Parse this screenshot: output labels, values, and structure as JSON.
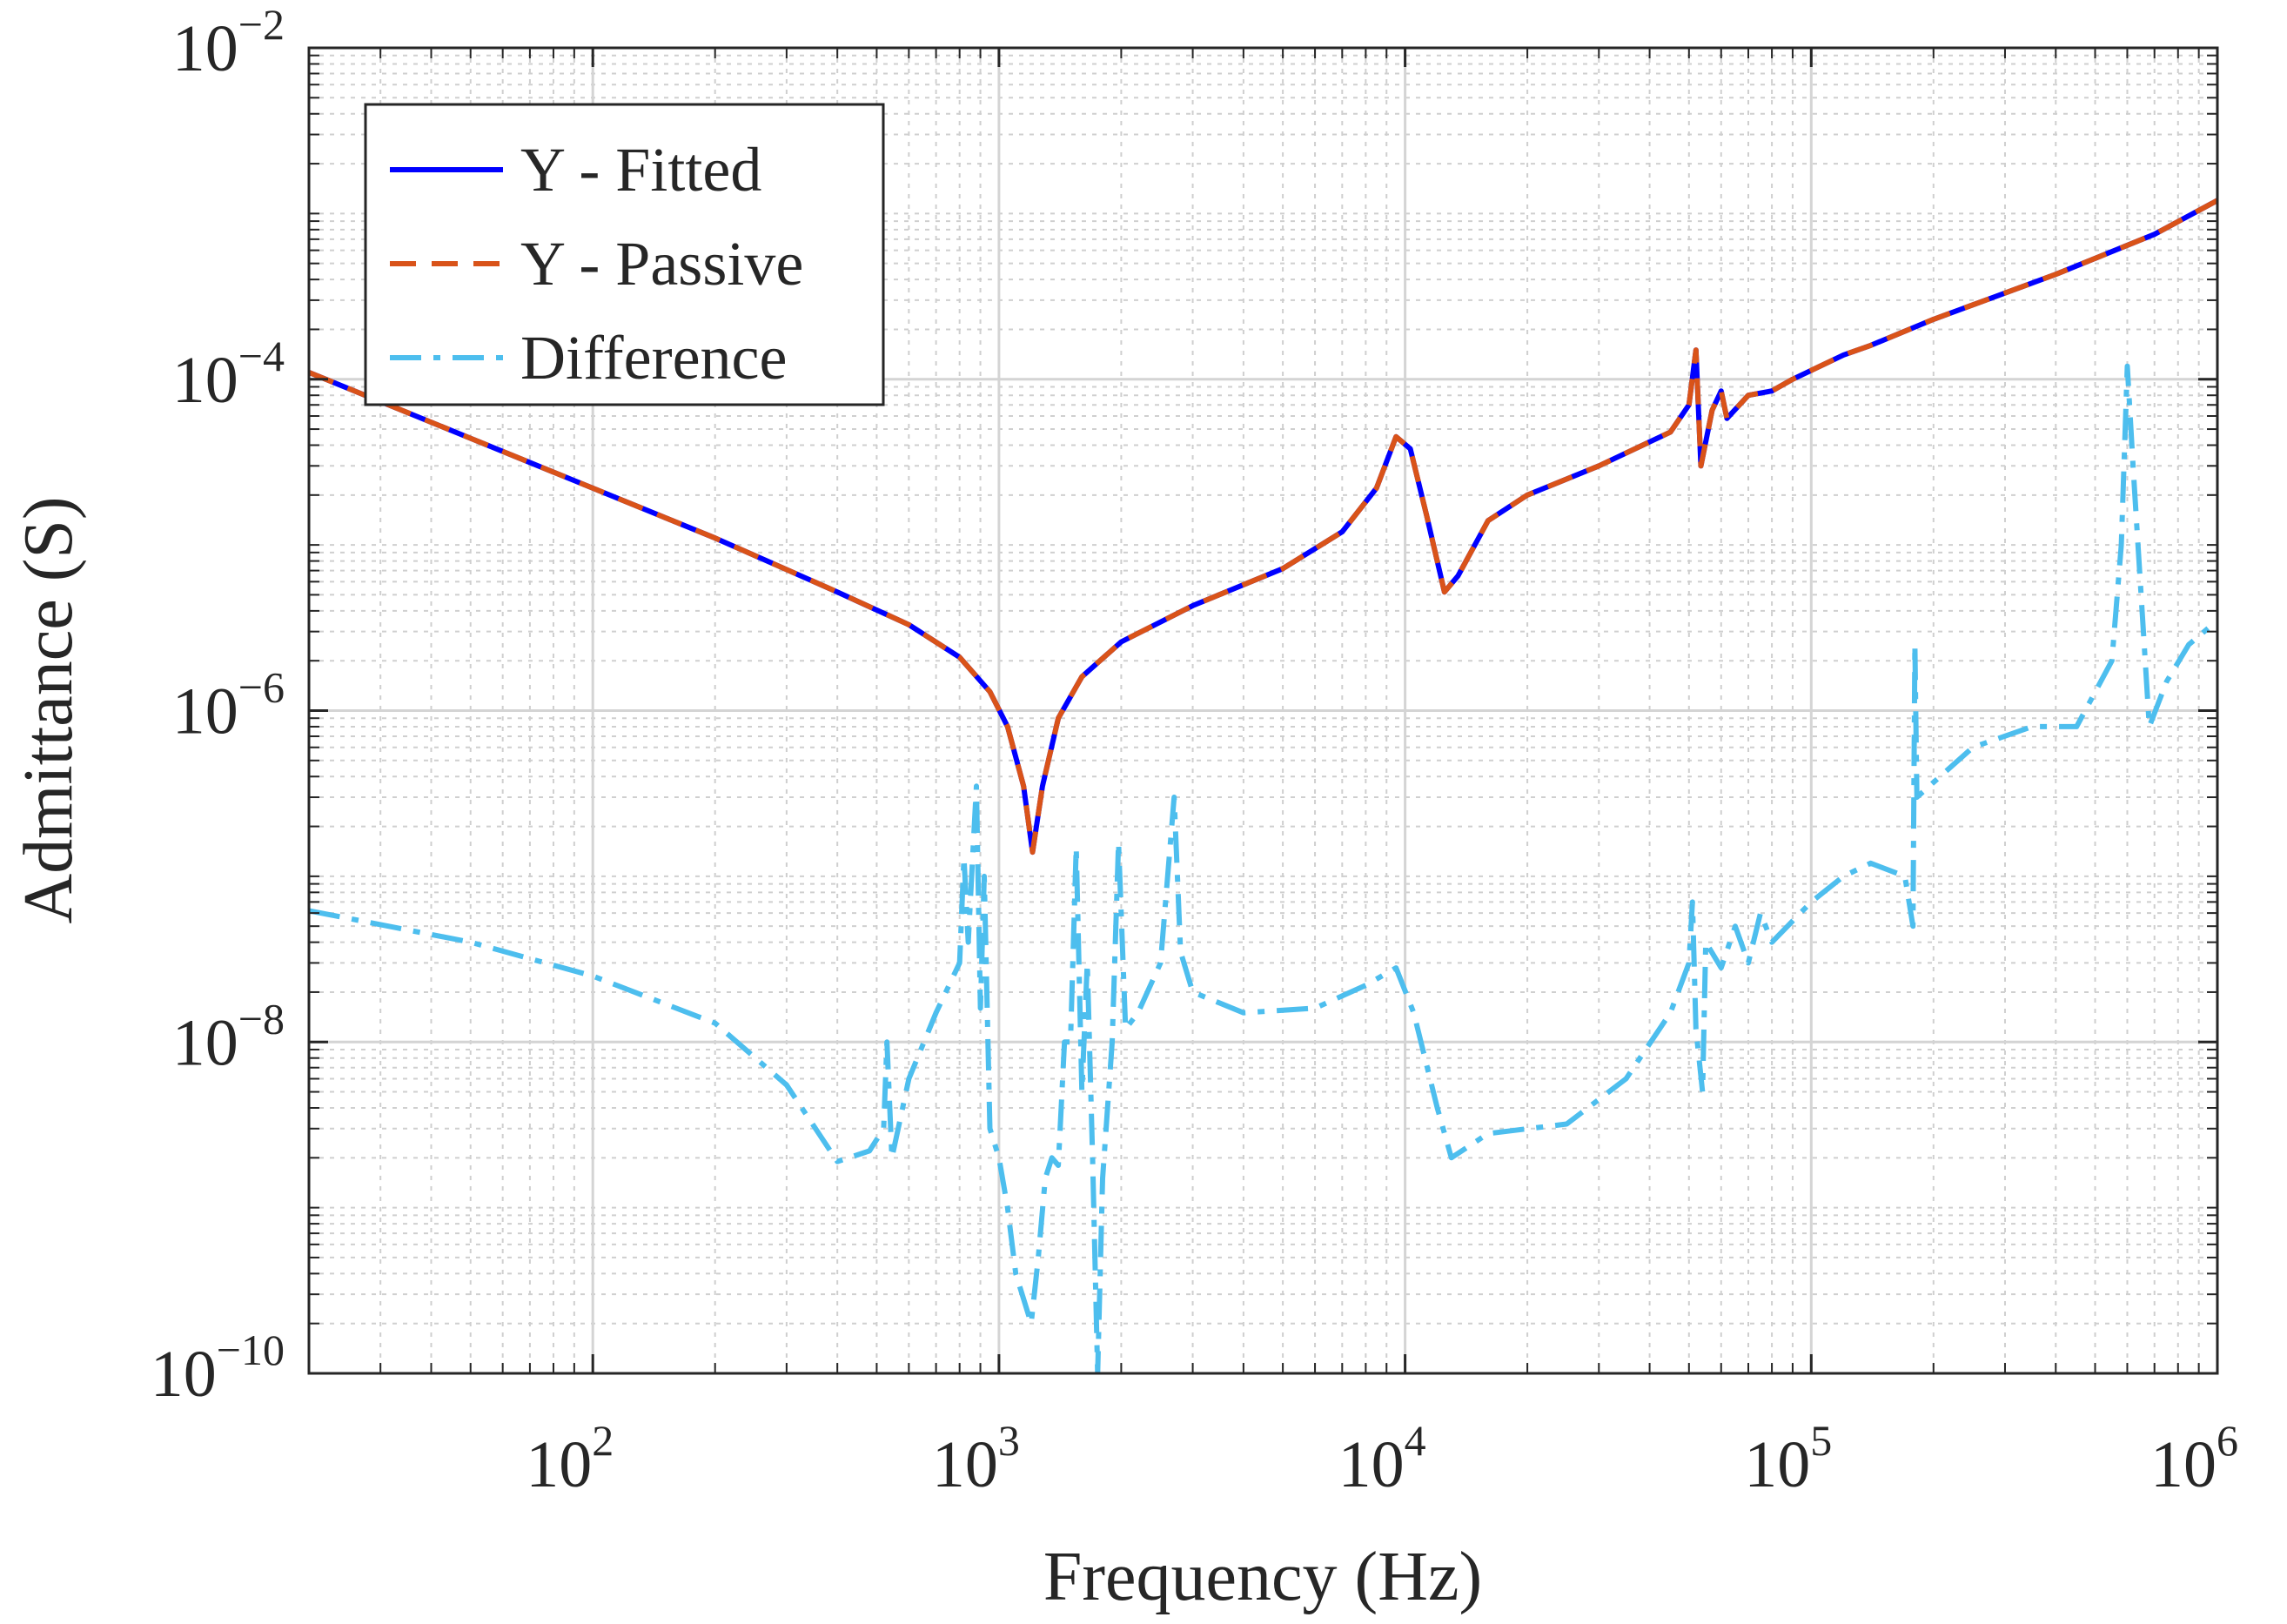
{
  "chart_data": {
    "type": "line",
    "title": "",
    "xlabel": "Frequency (Hz)",
    "ylabel": "Admittance (S)",
    "xscale": "log",
    "yscale": "log",
    "xlim": [
      20,
      1000000
    ],
    "ylim": [
      1e-10,
      0.01
    ],
    "grid": true,
    "minor_grid": true,
    "legend_position": "top-left",
    "x_ticks": [
      {
        "base": "10",
        "exp": "2",
        "value": 100
      },
      {
        "base": "10",
        "exp": "3",
        "value": 1000
      },
      {
        "base": "10",
        "exp": "4",
        "value": 10000
      },
      {
        "base": "10",
        "exp": "5",
        "value": 100000
      },
      {
        "base": "10",
        "exp": "6",
        "value": 1000000
      }
    ],
    "y_ticks": [
      {
        "base": "10",
        "exp": "−10",
        "value": 1e-10
      },
      {
        "base": "10",
        "exp": "−8",
        "value": 1e-08
      },
      {
        "base": "10",
        "exp": "−6",
        "value": 1e-06
      },
      {
        "base": "10",
        "exp": "−4",
        "value": 0.0001
      },
      {
        "base": "10",
        "exp": "−2",
        "value": 0.01
      }
    ],
    "series": [
      {
        "name": "Y - Fitted",
        "color": "#0000ff",
        "style": "solid",
        "points": [
          [
            20,
            0.00011
          ],
          [
            50,
            4.4e-05
          ],
          [
            100,
            2.2e-05
          ],
          [
            200,
            1.1e-05
          ],
          [
            400,
            5.2e-06
          ],
          [
            600,
            3.3e-06
          ],
          [
            800,
            2.1e-06
          ],
          [
            950,
            1.3e-06
          ],
          [
            1050,
            8e-07
          ],
          [
            1150,
            3.5e-07
          ],
          [
            1210,
            1.4e-07
          ],
          [
            1280,
            3.5e-07
          ],
          [
            1400,
            9e-07
          ],
          [
            1600,
            1.6e-06
          ],
          [
            2000,
            2.6e-06
          ],
          [
            3000,
            4.3e-06
          ],
          [
            5000,
            7.2e-06
          ],
          [
            7000,
            1.2e-05
          ],
          [
            8500,
            2.2e-05
          ],
          [
            9500,
            4.5e-05
          ],
          [
            10300,
            3.8e-05
          ],
          [
            11300,
            1.5e-05
          ],
          [
            12500,
            5.2e-06
          ],
          [
            13500,
            6.5e-06
          ],
          [
            16000,
            1.4e-05
          ],
          [
            20000,
            2e-05
          ],
          [
            30000,
            3e-05
          ],
          [
            45000,
            4.8e-05
          ],
          [
            50000,
            7e-05
          ],
          [
            52000,
            0.00015
          ],
          [
            53500,
            3e-05
          ],
          [
            57000,
            6.5e-05
          ],
          [
            60000,
            8.5e-05
          ],
          [
            62000,
            5.8e-05
          ],
          [
            70000,
            8e-05
          ],
          [
            80000,
            8.5e-05
          ],
          [
            90000,
            0.0001
          ],
          [
            120000,
            0.00014
          ],
          [
            140000,
            0.00016
          ],
          [
            200000,
            0.00023
          ],
          [
            400000,
            0.00043
          ],
          [
            700000,
            0.00075
          ],
          [
            1000000,
            0.0012
          ]
        ]
      },
      {
        "name": "Y - Passive",
        "color": "#d95319",
        "style": "dashed",
        "points": [
          [
            20,
            0.00011
          ],
          [
            50,
            4.4e-05
          ],
          [
            100,
            2.2e-05
          ],
          [
            200,
            1.1e-05
          ],
          [
            400,
            5.2e-06
          ],
          [
            600,
            3.3e-06
          ],
          [
            800,
            2.1e-06
          ],
          [
            950,
            1.3e-06
          ],
          [
            1050,
            8e-07
          ],
          [
            1150,
            3.5e-07
          ],
          [
            1210,
            1.4e-07
          ],
          [
            1280,
            3.5e-07
          ],
          [
            1400,
            9e-07
          ],
          [
            1600,
            1.6e-06
          ],
          [
            2000,
            2.6e-06
          ],
          [
            3000,
            4.3e-06
          ],
          [
            5000,
            7.2e-06
          ],
          [
            7000,
            1.2e-05
          ],
          [
            8500,
            2.2e-05
          ],
          [
            9500,
            4.5e-05
          ],
          [
            10300,
            3.8e-05
          ],
          [
            11300,
            1.5e-05
          ],
          [
            12500,
            5.2e-06
          ],
          [
            13500,
            6.5e-06
          ],
          [
            16000,
            1.4e-05
          ],
          [
            20000,
            2e-05
          ],
          [
            30000,
            3e-05
          ],
          [
            45000,
            4.8e-05
          ],
          [
            50000,
            7e-05
          ],
          [
            52000,
            0.00015
          ],
          [
            53500,
            3e-05
          ],
          [
            57000,
            6.5e-05
          ],
          [
            60000,
            8.5e-05
          ],
          [
            62000,
            5.8e-05
          ],
          [
            70000,
            8e-05
          ],
          [
            80000,
            8.5e-05
          ],
          [
            90000,
            0.0001
          ],
          [
            120000,
            0.00014
          ],
          [
            140000,
            0.00016
          ],
          [
            200000,
            0.00023
          ],
          [
            400000,
            0.00043
          ],
          [
            700000,
            0.00075
          ],
          [
            1000000,
            0.0012
          ]
        ]
      },
      {
        "name": "Difference",
        "color": "#4dbeee",
        "style": "dashdot",
        "points": [
          [
            20,
            6.2e-08
          ],
          [
            50,
            4e-08
          ],
          [
            100,
            2.5e-08
          ],
          [
            200,
            1.3e-08
          ],
          [
            300,
            5.5e-09
          ],
          [
            400,
            1.9e-09
          ],
          [
            480,
            2.2e-09
          ],
          [
            520,
            3e-09
          ],
          [
            530,
            1e-08
          ],
          [
            545,
            2e-09
          ],
          [
            600,
            6e-09
          ],
          [
            700,
            1.5e-08
          ],
          [
            800,
            3e-08
          ],
          [
            820,
            1.3e-07
          ],
          [
            840,
            4e-08
          ],
          [
            860,
            1.2e-07
          ],
          [
            880,
            3.5e-07
          ],
          [
            900,
            1.6e-08
          ],
          [
            920,
            1e-07
          ],
          [
            950,
            3e-09
          ],
          [
            1000,
            2e-09
          ],
          [
            1050,
            1e-09
          ],
          [
            1100,
            4e-10
          ],
          [
            1200,
            2e-10
          ],
          [
            1250,
            5e-10
          ],
          [
            1300,
            1.5e-09
          ],
          [
            1350,
            2e-09
          ],
          [
            1400,
            1.8e-09
          ],
          [
            1450,
            1e-08
          ],
          [
            1500,
            1e-08
          ],
          [
            1550,
            1.5e-07
          ],
          [
            1600,
            5e-09
          ],
          [
            1650,
            3e-08
          ],
          [
            1700,
            2e-09
          ],
          [
            1750,
            1e-10
          ],
          [
            1800,
            1.5e-09
          ],
          [
            1900,
            1e-08
          ],
          [
            1970,
            1.6e-07
          ],
          [
            2050,
            1.2e-08
          ],
          [
            2200,
            1.5e-08
          ],
          [
            2500,
            3e-08
          ],
          [
            2700,
            3e-07
          ],
          [
            2800,
            3.5e-08
          ],
          [
            3000,
            2e-08
          ],
          [
            4000,
            1.5e-08
          ],
          [
            6000,
            1.6e-08
          ],
          [
            8000,
            2.2e-08
          ],
          [
            9500,
            2.8e-08
          ],
          [
            10500,
            1.5e-08
          ],
          [
            12000,
            4e-09
          ],
          [
            13000,
            2e-09
          ],
          [
            16000,
            2.8e-09
          ],
          [
            25000,
            3.2e-09
          ],
          [
            35000,
            6e-09
          ],
          [
            45000,
            1.5e-08
          ],
          [
            50000,
            3e-08
          ],
          [
            51000,
            7e-08
          ],
          [
            52000,
            1.2e-08
          ],
          [
            54000,
            5e-09
          ],
          [
            55000,
            4e-08
          ],
          [
            60000,
            2.8e-08
          ],
          [
            65000,
            5e-08
          ],
          [
            70000,
            3e-08
          ],
          [
            75000,
            6e-08
          ],
          [
            80000,
            4e-08
          ],
          [
            100000,
            7e-08
          ],
          [
            120000,
            1e-07
          ],
          [
            140000,
            1.2e-07
          ],
          [
            170000,
            1e-07
          ],
          [
            178000,
            5e-08
          ],
          [
            180000,
            2.5e-06
          ],
          [
            182000,
            3e-07
          ],
          [
            250000,
            6e-07
          ],
          [
            350000,
            8e-07
          ],
          [
            450000,
            8e-07
          ],
          [
            550000,
            2e-06
          ],
          [
            580000,
            1e-05
          ],
          [
            600000,
            0.00012
          ],
          [
            620000,
            3e-05
          ],
          [
            680000,
            8e-07
          ],
          [
            750000,
            1.5e-06
          ],
          [
            850000,
            2.5e-06
          ],
          [
            1000000,
            3.5e-06
          ]
        ]
      }
    ]
  }
}
